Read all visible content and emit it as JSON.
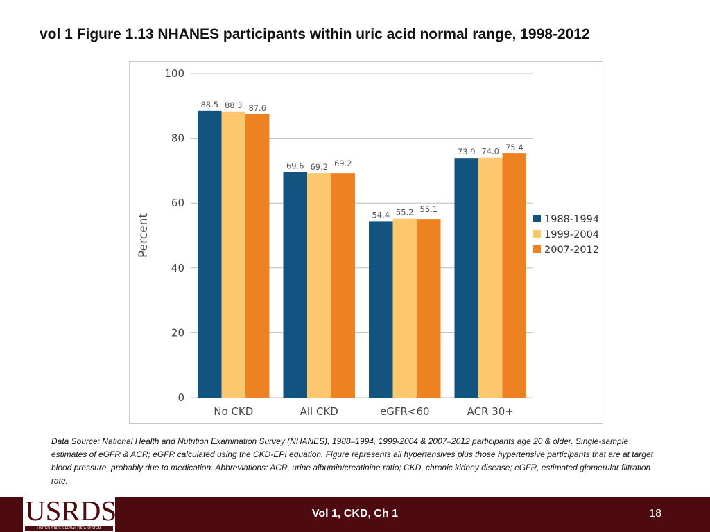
{
  "slide": {
    "title": "vol 1 Figure 1.13  NHANES participants within uric acid normal range, 1998-2012",
    "source_note": "Data Source: National Health and Nutrition Examination Survey (NHANES), 1988–1994, 1999-2004 & 2007–2012 participants age 20 & older. Single-sample estimates of eGFR & ACR; eGFR calculated using the CKD-EPI equation. Figure represents all hypertensives plus those hypertensive participants that are at target blood pressure, probably due to medication. Abbreviations: ACR, urine albumin/creatinine ratio; CKD, chronic kidney disease; eGFR, estimated glomerular filtration rate."
  },
  "footer": {
    "logo_text": "USRDS",
    "logo_subtext": "UNITED STATES RENAL DATA SYSTEM",
    "center_text": "Vol 1, CKD, Ch 1",
    "page_number": "18"
  },
  "colors": {
    "series": [
      "#12537f",
      "#fdc86d",
      "#ee8121"
    ],
    "grid": "#bdbdbd",
    "axis_text": "#444444",
    "footer_bg": "#4e0b0f"
  },
  "chart_data": {
    "type": "bar",
    "title": "",
    "xlabel": "",
    "ylabel": "Percent",
    "ylim": [
      0,
      100
    ],
    "yticks": [
      0,
      20,
      40,
      60,
      80,
      100
    ],
    "grid": true,
    "legend_position": "right",
    "categories": [
      "No CKD",
      "All CKD",
      "eGFR<60",
      "ACR 30+"
    ],
    "series": [
      {
        "name": "1988-1994",
        "values": [
          88.5,
          69.6,
          54.4,
          73.9
        ],
        "labels": [
          "88.5",
          "69.6",
          "54.4",
          "73.9"
        ]
      },
      {
        "name": "1999-2004",
        "values": [
          88.3,
          69.2,
          55.2,
          74.0
        ],
        "labels": [
          "88.3",
          "69.2",
          "55.2",
          "74.0"
        ]
      },
      {
        "name": "2007-2012",
        "values": [
          87.6,
          69.2,
          55.1,
          75.4
        ],
        "labels": [
          "87.6",
          "69.2",
          "55.1",
          "75.4"
        ]
      }
    ]
  }
}
